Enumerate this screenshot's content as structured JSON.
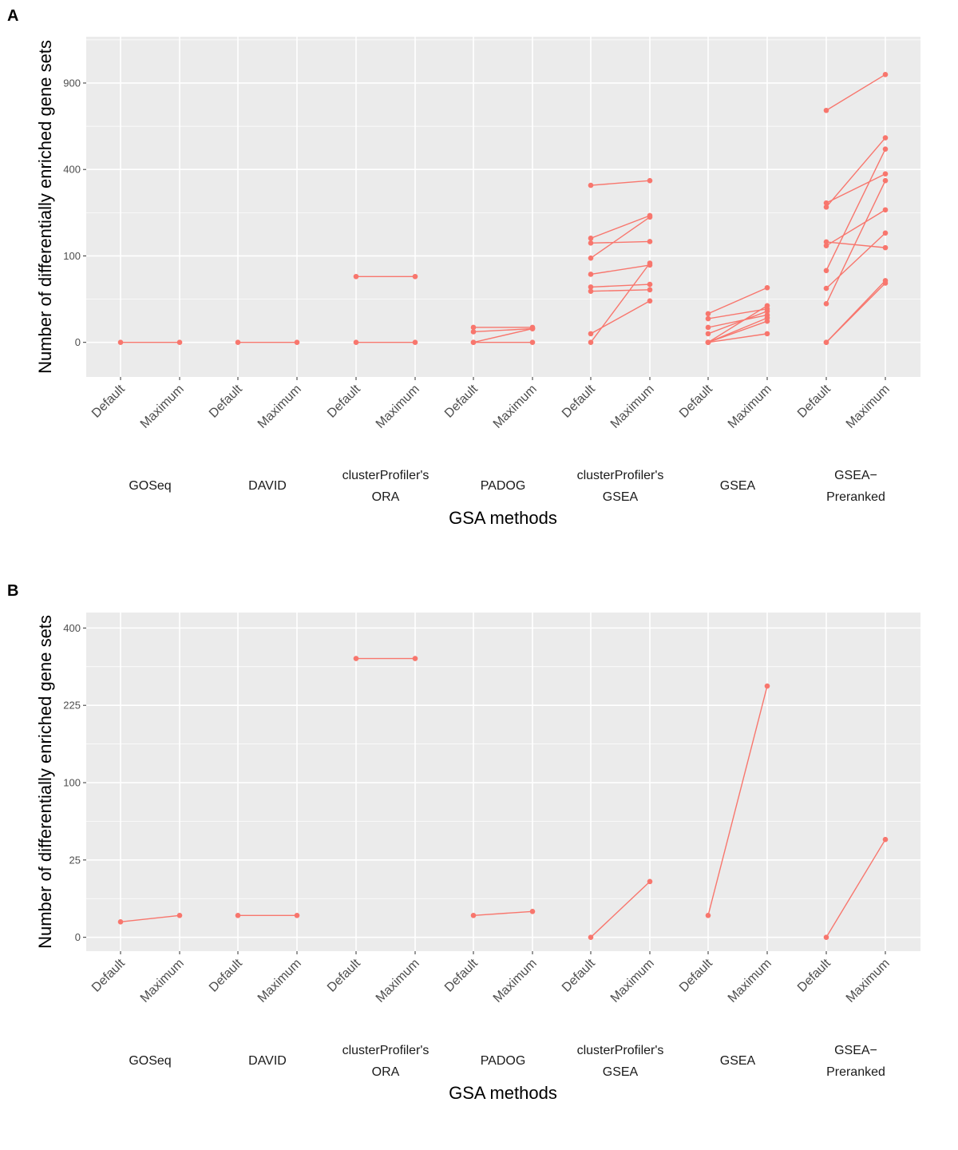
{
  "colors": {
    "panel_bg": "#ebebeb",
    "grid": "#ffffff",
    "series": "#f8766d",
    "tick_text": "#4d4d4d",
    "tick_mark": "#333333"
  },
  "chart_data": [
    {
      "panel": "A",
      "type": "line",
      "title": "",
      "xlabel": "GSA methods",
      "ylabel": "Number of differentially enriched gene sets",
      "y_scale": "sqrt",
      "ylim": [
        -16,
        1250
      ],
      "yticks": [
        0,
        100,
        400,
        900
      ],
      "ytick_labels": [
        "0",
        "100",
        "400",
        "900"
      ],
      "categories": [
        "Default",
        "Maximum"
      ],
      "methods": [
        {
          "label": [
            "GOSeq"
          ],
          "pairs": [
            [
              0,
              0
            ]
          ]
        },
        {
          "label": [
            "DAVID"
          ],
          "pairs": [
            [
              0,
              0
            ]
          ]
        },
        {
          "label": [
            "clusterProfiler's",
            "ORA"
          ],
          "pairs": [
            [
              0,
              0
            ],
            [
              58,
              58
            ]
          ]
        },
        {
          "label": [
            "PADOG"
          ],
          "pairs": [
            [
              3,
              3
            ],
            [
              1.5,
              2.5
            ],
            [
              0,
              2.5
            ],
            [
              0,
              0
            ]
          ]
        },
        {
          "label": [
            "clusterProfiler's",
            "GSEA"
          ],
          "pairs": [
            [
              330,
              350
            ],
            [
              145,
              215
            ],
            [
              132,
              136
            ],
            [
              95,
              210
            ],
            [
              62,
              80
            ],
            [
              41,
              45
            ],
            [
              35,
              37
            ],
            [
              1,
              23
            ],
            [
              0,
              84
            ]
          ]
        },
        {
          "label": [
            "GSEA"
          ],
          "pairs": [
            [
              11,
              40
            ],
            [
              7.5,
              15
            ],
            [
              3,
              10
            ],
            [
              1,
              13
            ],
            [
              0,
              18
            ],
            [
              0,
              1
            ],
            [
              0,
              8
            ],
            [
              0,
              6
            ]
          ]
        },
        {
          "label": [
            "GSEA−",
            "Preranked"
          ],
          "pairs": [
            [
              720,
              960
            ],
            [
              260,
              380
            ],
            [
              245,
              560
            ],
            [
              135,
              120
            ],
            [
              125,
              235
            ],
            [
              69,
              500
            ],
            [
              39,
              160
            ],
            [
              20,
              350
            ],
            [
              0,
              47
            ],
            [
              0,
              51
            ]
          ]
        }
      ]
    },
    {
      "panel": "B",
      "type": "line",
      "title": "",
      "xlabel": "GSA methods",
      "ylabel": "Number of differentially enriched gene sets",
      "y_scale": "sqrt",
      "ylim": [
        -0.8,
        441
      ],
      "yticks": [
        0,
        25,
        100,
        225,
        400
      ],
      "ytick_labels": [
        "0",
        "25",
        "100",
        "225",
        "400"
      ],
      "categories": [
        "Default",
        "Maximum"
      ],
      "methods": [
        {
          "label": [
            "GOSeq"
          ],
          "pairs": [
            [
              1,
              2
            ]
          ]
        },
        {
          "label": [
            "DAVID"
          ],
          "pairs": [
            [
              2,
              2
            ]
          ]
        },
        {
          "label": [
            "clusterProfiler's",
            "ORA"
          ],
          "pairs": [
            [
              325,
              325
            ]
          ]
        },
        {
          "label": [
            "PADOG"
          ],
          "pairs": [
            [
              2,
              2.8
            ]
          ]
        },
        {
          "label": [
            "clusterProfiler's",
            "GSEA"
          ],
          "pairs": [
            [
              0,
              13
            ]
          ]
        },
        {
          "label": [
            "GSEA"
          ],
          "pairs": [
            [
              2,
              264
            ]
          ]
        },
        {
          "label": [
            "GSEA−",
            "Preranked"
          ],
          "pairs": [
            [
              0,
              40
            ]
          ]
        }
      ]
    }
  ]
}
